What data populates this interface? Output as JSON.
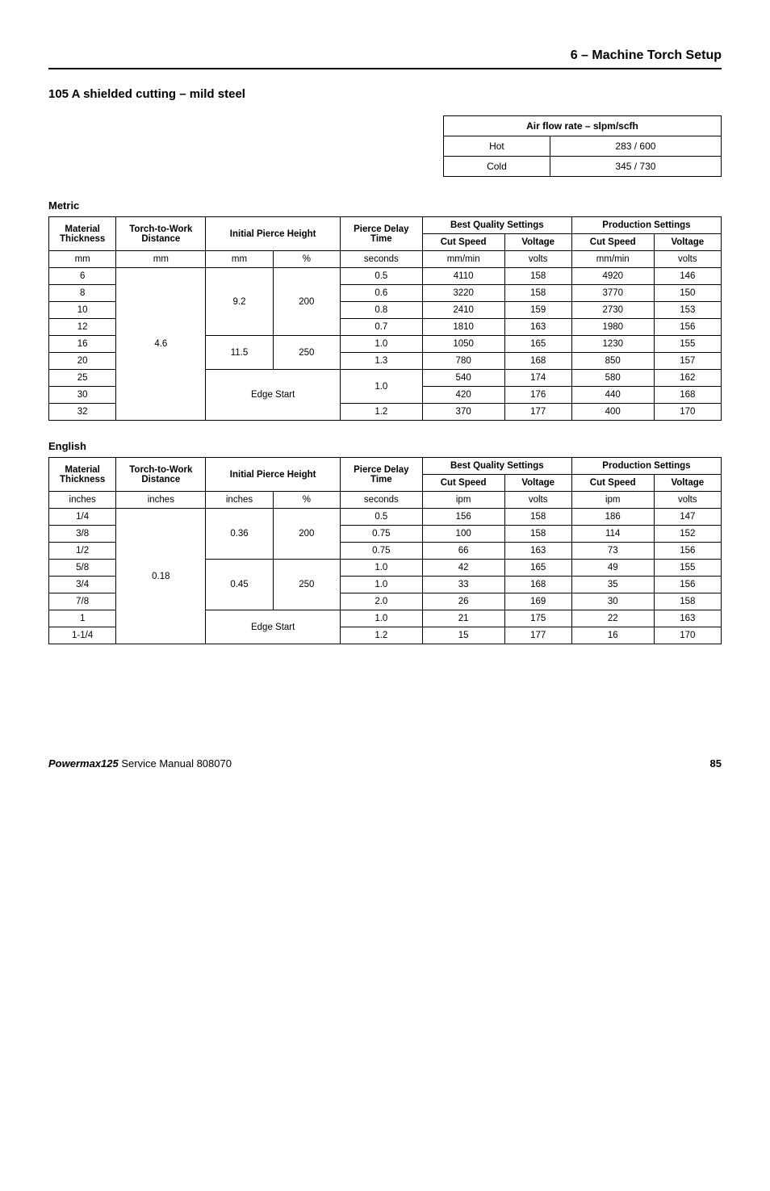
{
  "header": {
    "section": "6 – Machine Torch Setup"
  },
  "title": "105 A shielded cutting – mild steel",
  "airflow": {
    "header": "Air flow rate – slpm/scfh",
    "rows": [
      {
        "label": "Hot",
        "value": "283 / 600"
      },
      {
        "label": "Cold",
        "value": "345 / 730"
      }
    ]
  },
  "metric": {
    "label": "Metric",
    "headers": {
      "material_thickness": "Material Thickness",
      "torch_to_work": "Torch-to-Work Distance",
      "initial_pierce_height": "Initial Pierce Height",
      "pierce_delay_time": "Pierce Delay Time",
      "best_quality": "Best Quality Settings",
      "production": "Production Settings",
      "cut_speed": "Cut Speed",
      "voltage": "Voltage"
    },
    "units": {
      "thickness": "mm",
      "distance": "mm",
      "iph_a": "mm",
      "iph_b": "%",
      "delay": "seconds",
      "bq_speed": "mm/min",
      "bq_volt": "volts",
      "pr_speed": "mm/min",
      "pr_volt": "volts"
    },
    "torch_distance": "4.6",
    "group1": {
      "mm": "9.2",
      "pct": "200"
    },
    "group2": {
      "mm": "11.5",
      "pct": "250"
    },
    "edge_start": "Edge Start",
    "rows": [
      {
        "t": "6",
        "delay": "0.5",
        "bq_cs": "4110",
        "bq_v": "158",
        "pr_cs": "4920",
        "pr_v": "146"
      },
      {
        "t": "8",
        "delay": "0.6",
        "bq_cs": "3220",
        "bq_v": "158",
        "pr_cs": "3770",
        "pr_v": "150"
      },
      {
        "t": "10",
        "delay": "0.8",
        "bq_cs": "2410",
        "bq_v": "159",
        "pr_cs": "2730",
        "pr_v": "153"
      },
      {
        "t": "12",
        "delay": "0.7",
        "bq_cs": "1810",
        "bq_v": "163",
        "pr_cs": "1980",
        "pr_v": "156"
      },
      {
        "t": "16",
        "delay": "1.0",
        "bq_cs": "1050",
        "bq_v": "165",
        "pr_cs": "1230",
        "pr_v": "155"
      },
      {
        "t": "20",
        "delay": "1.3",
        "bq_cs": "780",
        "bq_v": "168",
        "pr_cs": "850",
        "pr_v": "157"
      },
      {
        "t": "25",
        "delay": "1.0",
        "bq_cs": "540",
        "bq_v": "174",
        "pr_cs": "580",
        "pr_v": "162"
      },
      {
        "t": "30",
        "bq_cs": "420",
        "bq_v": "176",
        "pr_cs": "440",
        "pr_v": "168"
      },
      {
        "t": "32",
        "delay": "1.2",
        "bq_cs": "370",
        "bq_v": "177",
        "pr_cs": "400",
        "pr_v": "170"
      }
    ]
  },
  "english": {
    "label": "English",
    "headers": {
      "material_thickness": "Material Thickness",
      "torch_to_work": "Torch-to-Work Distance",
      "initial_pierce_height": "Initial Pierce Height",
      "pierce_delay_time": "Pierce Delay Time",
      "best_quality": "Best Quality Settings",
      "production": "Production Settings",
      "cut_speed": "Cut Speed",
      "voltage": "Voltage"
    },
    "units": {
      "thickness": "inches",
      "distance": "inches",
      "iph_a": "inches",
      "iph_b": "%",
      "delay": "seconds",
      "bq_speed": "ipm",
      "bq_volt": "volts",
      "pr_speed": "ipm",
      "pr_volt": "volts"
    },
    "torch_distance": "0.18",
    "group1": {
      "in": "0.36",
      "pct": "200"
    },
    "group2": {
      "in": "0.45",
      "pct": "250"
    },
    "edge_start": "Edge Start",
    "rows": [
      {
        "t": "1/4",
        "delay": "0.5",
        "bq_cs": "156",
        "bq_v": "158",
        "pr_cs": "186",
        "pr_v": "147"
      },
      {
        "t": "3/8",
        "delay": "0.75",
        "bq_cs": "100",
        "bq_v": "158",
        "pr_cs": "114",
        "pr_v": "152"
      },
      {
        "t": "1/2",
        "delay": "0.75",
        "bq_cs": "66",
        "bq_v": "163",
        "pr_cs": "73",
        "pr_v": "156"
      },
      {
        "t": "5/8",
        "delay": "1.0",
        "bq_cs": "42",
        "bq_v": "165",
        "pr_cs": "49",
        "pr_v": "155"
      },
      {
        "t": "3/4",
        "delay": "1.0",
        "bq_cs": "33",
        "bq_v": "168",
        "pr_cs": "35",
        "pr_v": "156"
      },
      {
        "t": "7/8",
        "delay": "2.0",
        "bq_cs": "26",
        "bq_v": "169",
        "pr_cs": "30",
        "pr_v": "158"
      },
      {
        "t": "1",
        "delay": "1.0",
        "bq_cs": "21",
        "bq_v": "175",
        "pr_cs": "22",
        "pr_v": "163"
      },
      {
        "t": "1-1/4",
        "delay": "1.2",
        "bq_cs": "15",
        "bq_v": "177",
        "pr_cs": "16",
        "pr_v": "170"
      }
    ]
  },
  "footer": {
    "product": "Powermax125",
    "manual": "Service Manual  808070",
    "page": "85"
  }
}
